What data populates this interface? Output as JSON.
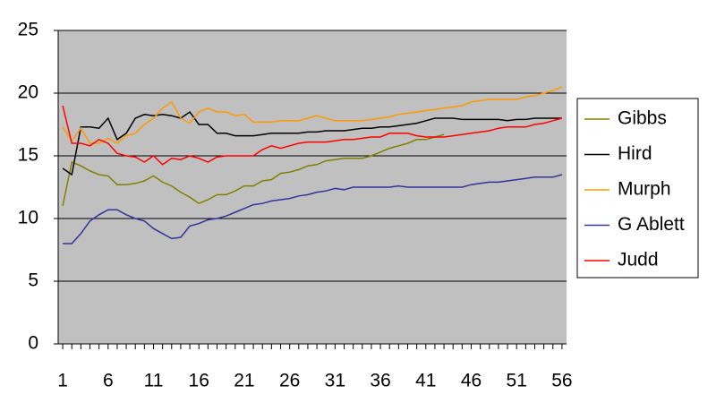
{
  "chart_data": {
    "type": "line",
    "x": [
      1,
      2,
      3,
      4,
      5,
      6,
      7,
      8,
      9,
      10,
      11,
      12,
      13,
      14,
      15,
      16,
      17,
      18,
      19,
      20,
      21,
      22,
      23,
      24,
      25,
      26,
      27,
      28,
      29,
      30,
      31,
      32,
      33,
      34,
      35,
      36,
      37,
      38,
      39,
      40,
      41,
      42,
      43,
      44,
      45,
      46,
      47,
      48,
      49,
      50,
      51,
      52,
      53,
      54,
      55,
      56
    ],
    "xlim": [
      0.5,
      56.5
    ],
    "xticks": [
      1,
      6,
      11,
      16,
      21,
      26,
      31,
      36,
      41,
      46,
      51,
      56
    ],
    "ylim": [
      0,
      25
    ],
    "yticks": [
      0,
      5,
      10,
      15,
      20,
      25
    ],
    "grid": true,
    "legend": "right",
    "series": [
      {
        "name": "Gibbs",
        "color": "#808000",
        "values": [
          11,
          14.5,
          14.2,
          13.8,
          13.5,
          13.4,
          12.7,
          12.7,
          12.8,
          13.0,
          13.4,
          12.9,
          12.6,
          12.1,
          11.7,
          11.2,
          11.5,
          11.9,
          11.9,
          12.2,
          12.6,
          12.6,
          13.0,
          13.1,
          13.6,
          13.7,
          13.9,
          14.2,
          14.3,
          14.6,
          14.7,
          14.8,
          14.8,
          14.8,
          15.0,
          15.3,
          15.6,
          15.8,
          16.0,
          16.3,
          16.3,
          16.5,
          16.7,
          null,
          null,
          null,
          null,
          null,
          null,
          null,
          null,
          null,
          null,
          null,
          null,
          null
        ]
      },
      {
        "name": "Hird",
        "color": "#000000",
        "values": [
          14,
          13.5,
          17.3,
          17.3,
          17.2,
          18,
          16.3,
          16.8,
          18,
          18.3,
          18.2,
          18.3,
          18.2,
          18,
          18.5,
          17.5,
          17.5,
          16.8,
          16.8,
          16.6,
          16.6,
          16.6,
          16.7,
          16.8,
          16.8,
          16.8,
          16.8,
          16.9,
          16.9,
          17,
          17,
          17,
          17.1,
          17.2,
          17.2,
          17.3,
          17.3,
          17.4,
          17.5,
          17.6,
          17.8,
          18,
          18,
          18,
          17.9,
          17.9,
          17.9,
          17.9,
          17.9,
          17.8,
          17.9,
          17.9,
          18,
          18,
          18,
          18
        ]
      },
      {
        "name": "Murph",
        "color": "#ff9900",
        "values": [
          17.3,
          16.2,
          17.2,
          16.0,
          16.0,
          16.4,
          16.0,
          16.6,
          16.8,
          17.5,
          18.0,
          18.8,
          19.3,
          18.0,
          17.6,
          18.5,
          18.8,
          18.5,
          18.5,
          18.2,
          18.3,
          17.7,
          17.7,
          17.7,
          17.8,
          17.8,
          17.8,
          18.0,
          18.2,
          18.0,
          17.8,
          17.8,
          17.8,
          17.8,
          17.9,
          18.0,
          18.1,
          18.3,
          18.4,
          18.5,
          18.6,
          18.7,
          18.8,
          18.9,
          19.0,
          19.3,
          19.4,
          19.5,
          19.5,
          19.5,
          19.5,
          19.7,
          19.8,
          20.0,
          20.2,
          20.5
        ]
      },
      {
        "name": "G Ablett",
        "color": "#333399",
        "values": [
          8,
          8,
          8.8,
          9.8,
          10.3,
          10.7,
          10.7,
          10.3,
          10,
          9.8,
          9.2,
          8.8,
          8.4,
          8.5,
          9.4,
          9.6,
          9.9,
          10,
          10.2,
          10.5,
          10.8,
          11.1,
          11.2,
          11.4,
          11.5,
          11.6,
          11.8,
          11.9,
          12.1,
          12.2,
          12.4,
          12.3,
          12.5,
          12.5,
          12.5,
          12.5,
          12.5,
          12.6,
          12.5,
          12.5,
          12.5,
          12.5,
          12.5,
          12.5,
          12.5,
          12.7,
          12.8,
          12.9,
          12.9,
          13.0,
          13.1,
          13.2,
          13.3,
          13.3,
          13.3,
          13.5
        ]
      },
      {
        "name": "Judd",
        "color": "#ff0000",
        "values": [
          19.0,
          16.0,
          16.0,
          15.8,
          16.3,
          16.0,
          15.2,
          15.0,
          14.9,
          14.5,
          15.0,
          14.3,
          14.8,
          14.7,
          15.0,
          14.8,
          14.5,
          14.9,
          15.0,
          15.0,
          15.0,
          15.0,
          15.5,
          15.8,
          15.6,
          15.8,
          16.0,
          16.1,
          16.1,
          16.1,
          16.2,
          16.3,
          16.3,
          16.4,
          16.5,
          16.5,
          16.8,
          16.8,
          16.8,
          16.6,
          16.5,
          16.5,
          16.5,
          16.6,
          16.7,
          16.8,
          16.9,
          17.0,
          17.2,
          17.3,
          17.3,
          17.3,
          17.5,
          17.6,
          17.8,
          18.0
        ]
      }
    ]
  }
}
